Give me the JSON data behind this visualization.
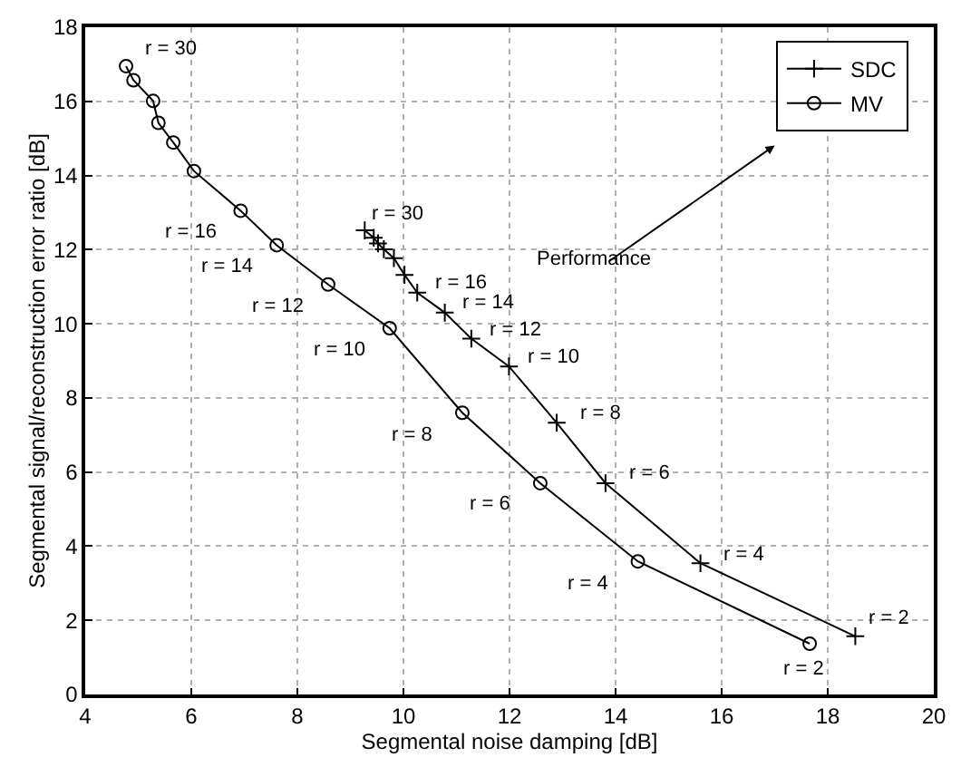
{
  "chart_data": {
    "type": "line",
    "xlabel": "Segmental noise damping [dB]",
    "ylabel": "Segmental signal/reconstruction error ratio [dB]",
    "xlim": [
      4,
      20
    ],
    "xticks": [
      4,
      6,
      8,
      10,
      12,
      14,
      16,
      18,
      20
    ],
    "ylim": [
      0,
      18
    ],
    "yticks": [
      0,
      2,
      4,
      6,
      8,
      10,
      12,
      14,
      16,
      18
    ],
    "grid": true,
    "legend": "top right",
    "line_style": "solid",
    "series": [
      {
        "name": "SDC",
        "color": "#000000",
        "marker": "cross",
        "x": [
          9.27,
          9.44,
          9.52,
          9.63,
          9.82,
          10.02,
          10.26,
          10.78,
          11.28,
          11.99,
          12.89,
          13.81,
          15.6,
          18.52
        ],
        "values": [
          12.52,
          12.32,
          12.17,
          12.01,
          11.77,
          11.32,
          10.84,
          10.3,
          9.6,
          8.85,
          7.33,
          5.7,
          3.54,
          1.57
        ]
      },
      {
        "name": "MV",
        "color": "#000000",
        "marker": "circle",
        "x": [
          4.77,
          4.91,
          5.28,
          5.38,
          5.66,
          6.05,
          6.93,
          7.61,
          8.58,
          9.74,
          11.11,
          12.58,
          14.42,
          17.66
        ],
        "values": [
          16.95,
          16.57,
          16.01,
          15.42,
          14.89,
          14.12,
          13.05,
          12.12,
          11.06,
          9.88,
          7.6,
          5.7,
          3.59,
          1.37
        ]
      }
    ],
    "annotations": [
      {
        "text": "r = 30",
        "x": 4.77,
        "y": 16.95
      },
      {
        "text": "r = 16",
        "x": 6.93,
        "y": 13.05
      },
      {
        "text": "r = 14",
        "x": 7.61,
        "y": 12.12
      },
      {
        "text": "r = 12",
        "x": 8.58,
        "y": 11.06
      },
      {
        "text": "r = 10",
        "x": 9.74,
        "y": 9.88
      },
      {
        "text": "r = 8",
        "x": 11.11,
        "y": 7.6
      },
      {
        "text": "r = 6",
        "x": 12.58,
        "y": 5.7
      },
      {
        "text": "r = 4",
        "x": 14.42,
        "y": 3.59
      },
      {
        "text": "r = 2",
        "x": 17.66,
        "y": 1.37
      },
      {
        "text": "r = 30",
        "x": 9.27,
        "y": 12.52
      },
      {
        "text": "r = 16",
        "x": 10.26,
        "y": 10.84
      },
      {
        "text": "r = 14",
        "x": 10.78,
        "y": 10.3
      },
      {
        "text": "r = 12",
        "x": 11.28,
        "y": 9.6
      },
      {
        "text": "r = 10",
        "x": 11.99,
        "y": 8.85
      },
      {
        "text": "r = 8",
        "x": 12.89,
        "y": 7.33
      },
      {
        "text": "r = 6",
        "x": 13.81,
        "y": 5.7
      },
      {
        "text": "r = 4",
        "x": 15.6,
        "y": 3.54
      },
      {
        "text": "r = 2",
        "x": 18.52,
        "y": 1.57
      },
      "Performance"
    ]
  }
}
